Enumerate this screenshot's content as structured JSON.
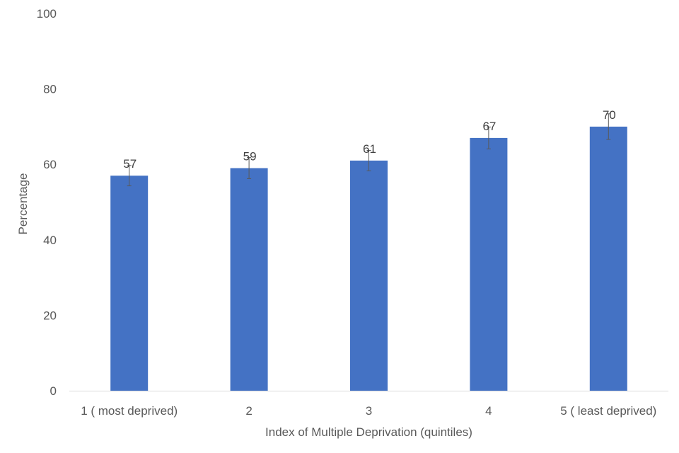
{
  "chart_data": {
    "type": "bar",
    "categories": [
      "1 ( most deprived)",
      "2",
      "3",
      "4",
      "5 ( least deprived)"
    ],
    "values": [
      57,
      59,
      61,
      67,
      70
    ],
    "error_bars": {
      "lower": [
        54.3,
        56.2,
        58.3,
        64.1,
        66.6
      ],
      "upper": [
        59.7,
        61.8,
        63.7,
        69.9,
        73.4
      ]
    },
    "data_labels": [
      "57",
      "59",
      "61",
      "67",
      "70"
    ],
    "title": "",
    "xlabel": "Index of Multiple Deprivation (quintiles)",
    "ylabel": "Percentage",
    "ylim": [
      0,
      100
    ],
    "yticks": [
      0,
      20,
      40,
      60,
      80,
      100
    ],
    "grid": false,
    "legend": "none",
    "colors": {
      "bar": "#4472C4",
      "error_bar": "#595959",
      "axis_line": "#D9D9D9"
    }
  }
}
